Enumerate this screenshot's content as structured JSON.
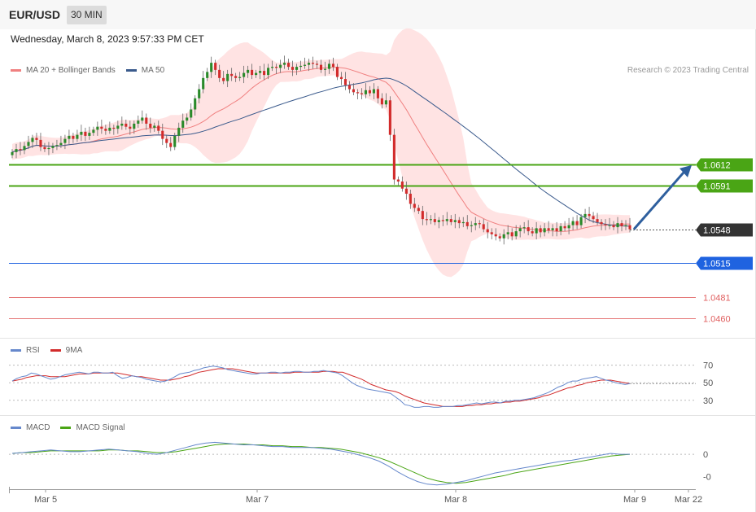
{
  "header": {
    "symbol": "EUR/USD",
    "timeframe": "30 MIN"
  },
  "datetime": "Wednesday, March 8, 2023 9:57:33 PM CET",
  "credit": "Research © 2023 Trading Central",
  "colors": {
    "ma20": "#f08080",
    "ma50": "#3a5a8c",
    "bands": "#ffd9d9",
    "bull": "#2a8a2a",
    "bear": "#d22b2b",
    "resistance": "#4aa515",
    "pivot": "#1f63e0",
    "support": "#e06060",
    "current": "#333333",
    "rsi": "#6688cc",
    "rsi_ma": "#d22b2b",
    "macd": "#6688cc",
    "macd_signal": "#4aa515"
  },
  "chart_data": [
    {
      "type": "line",
      "title": "",
      "legend": [
        "MA 20 + Bollinger Bands",
        "MA 50"
      ],
      "x_tick_labels": [
        "Mar 5",
        "Mar 7",
        "Mar 8",
        "Mar 9",
        "Mar 22"
      ],
      "levels": [
        {
          "value": 1.0612,
          "label": "1.0612",
          "kind": "resistance",
          "badge": true
        },
        {
          "value": 1.0591,
          "label": "1.0591",
          "kind": "resistance",
          "badge": true
        },
        {
          "value": 1.0548,
          "label": "1.0548",
          "kind": "current",
          "badge": true
        },
        {
          "value": 1.0515,
          "label": "1.0515",
          "kind": "pivot",
          "badge": true
        },
        {
          "value": 1.0481,
          "label": "1.0481",
          "kind": "support",
          "badge": false
        },
        {
          "value": 1.046,
          "label": "1.0460",
          "kind": "support",
          "badge": false
        }
      ],
      "ylim": [
        1.0441,
        1.0745
      ],
      "forecast_target": 1.0612,
      "closes": [
        1.0624,
        1.0627,
        1.0626,
        1.063,
        1.0634,
        1.0638,
        1.0636,
        1.0629,
        1.0627,
        1.0628,
        1.063,
        1.0631,
        1.0633,
        1.0637,
        1.064,
        1.0637,
        1.0641,
        1.0644,
        1.064,
        1.0643,
        1.0646,
        1.0649,
        1.0647,
        1.0645,
        1.0648,
        1.0647,
        1.065,
        1.0652,
        1.0649,
        1.0647,
        1.0652,
        1.0655,
        1.0658,
        1.0652,
        1.0648,
        1.065,
        1.0645,
        1.0637,
        1.0633,
        1.0629,
        1.064,
        1.0648,
        1.0655,
        1.0658,
        1.0666,
        1.0677,
        1.0686,
        1.0697,
        1.0703,
        1.0712,
        1.0705,
        1.0697,
        1.0694,
        1.0701,
        1.0699,
        1.0697,
        1.0698,
        1.0702,
        1.0705,
        1.07,
        1.0702,
        1.0704,
        1.07,
        1.0707,
        1.0708,
        1.0707,
        1.071,
        1.0712,
        1.0708,
        1.0705,
        1.0708,
        1.0709,
        1.071,
        1.0712,
        1.0711,
        1.071,
        1.0705,
        1.0706,
        1.0711,
        1.0708,
        1.0698,
        1.0696,
        1.069,
        1.0686,
        1.0683,
        1.0682,
        1.0681,
        1.0685,
        1.0682,
        1.0686,
        1.0677,
        1.0671,
        1.0675,
        1.0641,
        1.0597,
        1.0595,
        1.0588,
        1.0583,
        1.0573,
        1.0569,
        1.0566,
        1.0558,
        1.0557,
        1.0558,
        1.0555,
        1.0557,
        1.0556,
        1.0558,
        1.0555,
        1.0557,
        1.0554,
        1.0555,
        1.0551,
        1.0552,
        1.0554,
        1.0553,
        1.0548,
        1.0545,
        1.0543,
        1.0541,
        1.0539,
        1.0543,
        1.0545,
        1.0541,
        1.0546,
        1.0549,
        1.055,
        1.0546,
        1.0544,
        1.0549,
        1.0545,
        1.0549,
        1.0547,
        1.0549,
        1.0546,
        1.0551,
        1.0549,
        1.0552,
        1.0556,
        1.0552,
        1.056,
        1.0563,
        1.0561,
        1.0558,
        1.0555,
        1.0553,
        1.0552,
        1.0552,
        1.055,
        1.0554,
        1.0551,
        1.0552,
        1.0548
      ]
    },
    {
      "type": "line",
      "title": "RSI",
      "legend": [
        "RSI",
        "9MA"
      ],
      "y_tick_labels": [
        "70",
        "50",
        "30"
      ],
      "ylim": [
        15,
        78
      ],
      "rsi": [
        52,
        55,
        57,
        58,
        61,
        60,
        58,
        56,
        54,
        55,
        57,
        59,
        60,
        61,
        62,
        61,
        60,
        62,
        62,
        61,
        61,
        62,
        58,
        55,
        56,
        58,
        57,
        56,
        54,
        53,
        52,
        51,
        52,
        54,
        57,
        60,
        61,
        62,
        64,
        65,
        67,
        68,
        69,
        68,
        67,
        65,
        64,
        63,
        62,
        61,
        60,
        60,
        61,
        61,
        62,
        62,
        61,
        62,
        62,
        63,
        63,
        62,
        62,
        63,
        63,
        64,
        63,
        62,
        61,
        58,
        54,
        50,
        47,
        45,
        43,
        42,
        41,
        40,
        39,
        38,
        34,
        30,
        25,
        24,
        22,
        22,
        23,
        23,
        22,
        22,
        23,
        23,
        23,
        24,
        24,
        25,
        26,
        27,
        26,
        27,
        28,
        28,
        27,
        29,
        29,
        30,
        30,
        31,
        32,
        33,
        35,
        37,
        39,
        42,
        45,
        47,
        50,
        52,
        52,
        54,
        55,
        56,
        57,
        55,
        53,
        52,
        50,
        49,
        48,
        49
      ],
      "rsi_ma": [
        52,
        53,
        54,
        56,
        57,
        58,
        58,
        58,
        57,
        57,
        57,
        57,
        58,
        59,
        60,
        60,
        60,
        61,
        61,
        61,
        61,
        61,
        61,
        60,
        59,
        58,
        57,
        57,
        56,
        55,
        54,
        53,
        53,
        53,
        54,
        55,
        57,
        58,
        60,
        62,
        63,
        64,
        65,
        66,
        66,
        66,
        66,
        65,
        64,
        63,
        62,
        61,
        61,
        61,
        61,
        61,
        61,
        61,
        61,
        62,
        62,
        62,
        62,
        62,
        62,
        63,
        63,
        63,
        62,
        62,
        60,
        58,
        56,
        54,
        51,
        48,
        46,
        44,
        42,
        41,
        40,
        38,
        35,
        33,
        31,
        29,
        27,
        26,
        25,
        24,
        23,
        23,
        23,
        23,
        23,
        24,
        24,
        25,
        25,
        26,
        26,
        27,
        27,
        28,
        28,
        29,
        29,
        30,
        31,
        32,
        33,
        35,
        36,
        38,
        40,
        42,
        44,
        45,
        47,
        48,
        50,
        51,
        52,
        53,
        53,
        53,
        52,
        51,
        50,
        49
      ]
    },
    {
      "type": "line",
      "title": "MACD",
      "legend": [
        "MACD",
        "MACD Signal"
      ],
      "y_tick_labels": [
        "0",
        "-0"
      ],
      "ylim": [
        -0.004,
        0.0022
      ],
      "macd": [
        0.0001,
        0.0002,
        0.0003,
        0.0004,
        0.0005,
        0.0004,
        0.0003,
        0.0003,
        0.0004,
        0.0005,
        0.0006,
        0.0005,
        0.0004,
        0.0003,
        0.0001,
        0.0,
        0.0002,
        0.0005,
        0.0008,
        0.0011,
        0.0013,
        0.0014,
        0.0013,
        0.0012,
        0.0011,
        0.0011,
        0.001,
        0.0009,
        0.0009,
        0.0008,
        0.0008,
        0.0008,
        0.0007,
        0.0006,
        0.0004,
        0.0002,
        -0.0001,
        -0.0004,
        -0.0008,
        -0.0014,
        -0.0021,
        -0.0027,
        -0.0032,
        -0.0035,
        -0.0036,
        -0.0035,
        -0.0033,
        -0.0031,
        -0.0028,
        -0.0025,
        -0.0022,
        -0.002,
        -0.0018,
        -0.0016,
        -0.0014,
        -0.0012,
        -0.001,
        -0.0008,
        -0.0007,
        -0.0005,
        -0.0003,
        -0.0001,
        0.0001,
        0.0,
        0.0
      ],
      "macd_signal": [
        0.0001,
        0.0002,
        0.0002,
        0.0003,
        0.0004,
        0.0004,
        0.0004,
        0.0004,
        0.0004,
        0.0004,
        0.0005,
        0.0005,
        0.0004,
        0.0004,
        0.0003,
        0.0002,
        0.0002,
        0.0003,
        0.0005,
        0.0007,
        0.0009,
        0.0011,
        0.0012,
        0.0012,
        0.0012,
        0.0011,
        0.0011,
        0.001,
        0.001,
        0.0009,
        0.0009,
        0.0008,
        0.0008,
        0.0007,
        0.0006,
        0.0004,
        0.0002,
        -0.0001,
        -0.0004,
        -0.0008,
        -0.0013,
        -0.0018,
        -0.0023,
        -0.0028,
        -0.0031,
        -0.0033,
        -0.0034,
        -0.0033,
        -0.0031,
        -0.0029,
        -0.0027,
        -0.0025,
        -0.0022,
        -0.002,
        -0.0018,
        -0.0016,
        -0.0014,
        -0.0012,
        -0.001,
        -0.0008,
        -0.0006,
        -0.0004,
        -0.0002,
        -0.0001,
        0.0
      ]
    }
  ]
}
